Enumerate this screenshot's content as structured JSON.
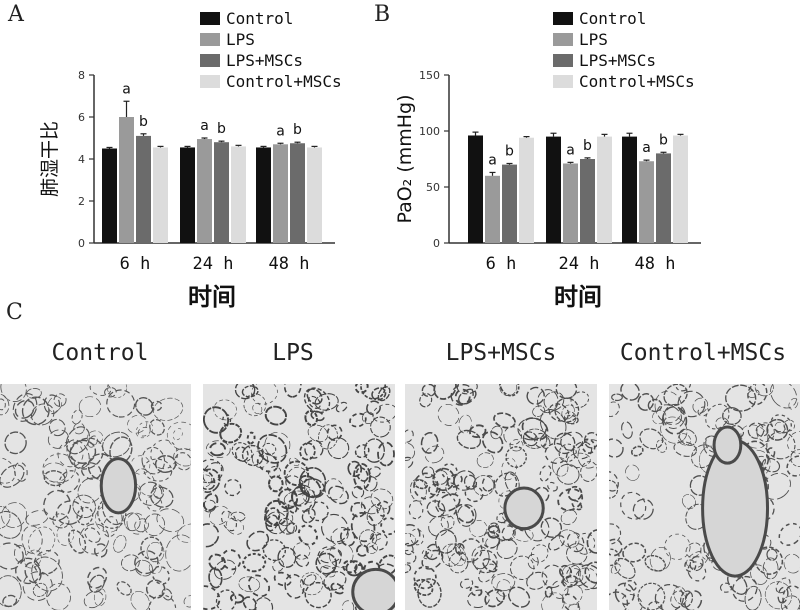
{
  "panel_labels": {
    "a": "A",
    "b": "B",
    "c": "C"
  },
  "legend": [
    "Control",
    "LPS",
    "LPS+MSCs",
    "Control+MSCs"
  ],
  "colors": {
    "Control": "#111111",
    "LPS": "#9a9a9a",
    "LPS+MSCs": "#6b6b6b",
    "Control+MSCs": "#dcdcdc"
  },
  "chart_data": [
    {
      "type": "bar",
      "panel": "A",
      "title": "",
      "xlabel": "时间",
      "ylabel": "肺湿干比",
      "categories": [
        "6 h",
        "24 h",
        "48 h"
      ],
      "ylim": [
        0,
        8
      ],
      "yticks": [
        0,
        2,
        4,
        6,
        8
      ],
      "series": [
        {
          "name": "Control",
          "values": [
            4.5,
            4.55,
            4.55
          ],
          "errors": [
            0.05,
            0.05,
            0.05
          ]
        },
        {
          "name": "LPS",
          "values": [
            6.0,
            4.95,
            4.7
          ],
          "errors": [
            0.75,
            0.05,
            0.05
          ]
        },
        {
          "name": "LPS+MSCs",
          "values": [
            5.1,
            4.8,
            4.75
          ],
          "errors": [
            0.1,
            0.05,
            0.05
          ]
        },
        {
          "name": "Control+MSCs",
          "values": [
            4.55,
            4.6,
            4.55
          ],
          "errors": [
            0.05,
            0.05,
            0.05
          ]
        }
      ],
      "annotations": [
        {
          "category": "6 h",
          "series": "LPS",
          "text": "a"
        },
        {
          "category": "6 h",
          "series": "LPS+MSCs",
          "text": "b"
        },
        {
          "category": "24 h",
          "series": "LPS",
          "text": "a"
        },
        {
          "category": "24 h",
          "series": "LPS+MSCs",
          "text": "b"
        },
        {
          "category": "48 h",
          "series": "LPS",
          "text": "a"
        },
        {
          "category": "48 h",
          "series": "LPS+MSCs",
          "text": "b"
        }
      ],
      "legend_position": "top-right",
      "grid": false
    },
    {
      "type": "bar",
      "panel": "B",
      "title": "",
      "xlabel": "时间",
      "ylabel": "PaO₂ (mmHg)",
      "categories": [
        "6 h",
        "24 h",
        "48 h"
      ],
      "ylim": [
        0,
        150
      ],
      "yticks": [
        0,
        50,
        100,
        150
      ],
      "series": [
        {
          "name": "Control",
          "values": [
            96,
            95,
            95
          ],
          "errors": [
            3,
            3,
            3
          ]
        },
        {
          "name": "LPS",
          "values": [
            60,
            71,
            73
          ],
          "errors": [
            3,
            1,
            1
          ]
        },
        {
          "name": "LPS+MSCs",
          "values": [
            70,
            75,
            80
          ],
          "errors": [
            1,
            1,
            1
          ]
        },
        {
          "name": "Control+MSCs",
          "values": [
            94,
            95,
            96
          ],
          "errors": [
            1,
            2,
            1
          ]
        }
      ],
      "annotations": [
        {
          "category": "6 h",
          "series": "LPS",
          "text": "a"
        },
        {
          "category": "6 h",
          "series": "LPS+MSCs",
          "text": "b"
        },
        {
          "category": "24 h",
          "series": "LPS",
          "text": "a"
        },
        {
          "category": "24 h",
          "series": "LPS+MSCs",
          "text": "b"
        },
        {
          "category": "48 h",
          "series": "LPS",
          "text": "a"
        },
        {
          "category": "48 h",
          "series": "LPS+MSCs",
          "text": "b"
        }
      ],
      "legend_position": "top-right",
      "grid": false
    }
  ],
  "photos": {
    "titles": [
      "Control",
      "LPS",
      "LPS+MSCs",
      "Control+MSCs"
    ]
  }
}
